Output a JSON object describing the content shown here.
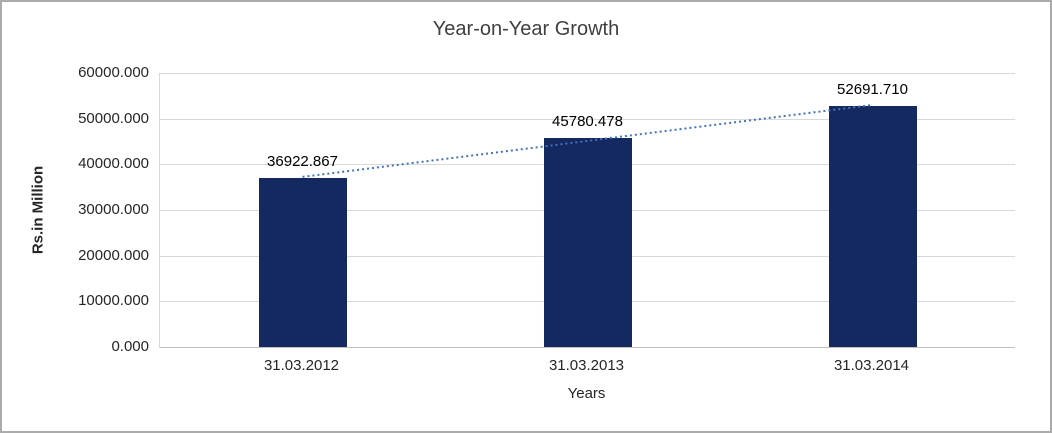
{
  "chart_data": {
    "type": "bar",
    "title": "Year-on-Year Growth",
    "xlabel": "Years",
    "ylabel": "Rs.in Million",
    "categories": [
      "31.03.2012",
      "31.03.2013",
      "31.03.2014"
    ],
    "values": [
      36922.867,
      45780.478,
      52691.71
    ],
    "data_labels": [
      "36922.867",
      "45780.478",
      "52691.710"
    ],
    "ylim": [
      0,
      60000
    ],
    "ytick_step": 10000,
    "ytick_labels": [
      "0.000",
      "10000.000",
      "20000.000",
      "30000.000",
      "40000.000",
      "50000.000",
      "60000.000"
    ],
    "grid": true,
    "legend": "none",
    "bar_color": "#13295f",
    "gridline_color": "#d9d9d9",
    "trendline": {
      "type": "linear",
      "style": "dotted",
      "color": "#4472c4"
    }
  }
}
